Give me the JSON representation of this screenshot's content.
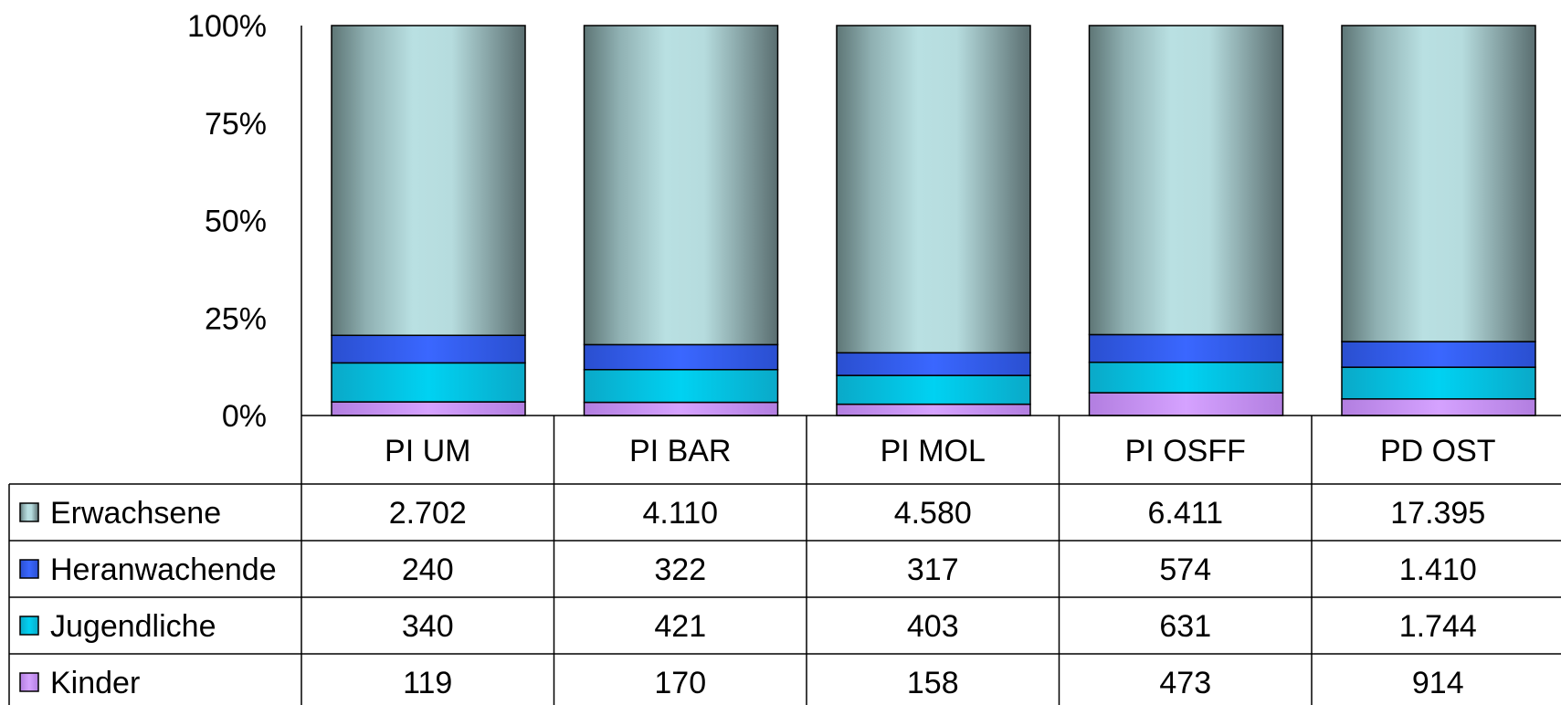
{
  "chart_data": {
    "type": "bar",
    "stacked": true,
    "normalized": true,
    "categories": [
      "PI UM",
      "PI BAR",
      "PI MOL",
      "PI OSFF",
      "PD OST"
    ],
    "series": [
      {
        "name": "Kinder",
        "values": [
          119,
          170,
          158,
          473,
          914
        ],
        "labels": [
          "119",
          "170",
          "158",
          "473",
          "914"
        ],
        "color": "#c58cf0"
      },
      {
        "name": "Jugendliche",
        "values": [
          340,
          421,
          403,
          631,
          1744
        ],
        "labels": [
          "340",
          "421",
          "403",
          "631",
          "1.744"
        ],
        "color": "#00c4e6"
      },
      {
        "name": "Heranwachende",
        "values": [
          240,
          322,
          317,
          574,
          1410
        ],
        "labels": [
          "240",
          "322",
          "317",
          "574",
          "1.410"
        ],
        "color": "#2f5be6"
      },
      {
        "name": "Erwachsene",
        "values": [
          2702,
          4110,
          4580,
          6411,
          17395
        ],
        "labels": [
          "2.702",
          "4.110",
          "4.580",
          "6.411",
          "17.395"
        ],
        "color": "#b5dcde"
      }
    ],
    "yticks": [
      "0%",
      "25%",
      "50%",
      "75%",
      "100%"
    ],
    "ylim": [
      0,
      100
    ],
    "data_table": true,
    "table_row_order": [
      "Erwachsene",
      "Heranwachende",
      "Jugendliche",
      "Kinder"
    ],
    "grid": false
  }
}
